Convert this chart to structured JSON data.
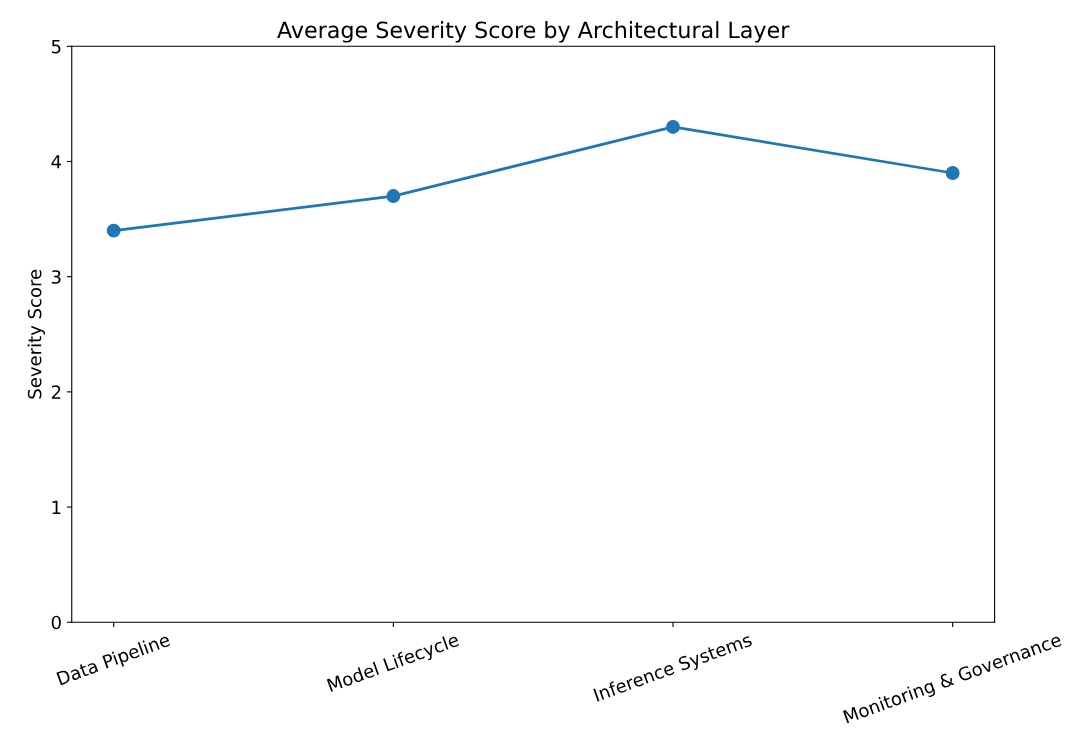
{
  "chart_data": {
    "type": "line",
    "title": "Average Severity Score by Architectural Layer",
    "ylabel": "Severity Score",
    "categories": [
      "Data Pipeline",
      "Model Lifecycle",
      "Inference Systems",
      "Monitoring & Governance"
    ],
    "series": [
      {
        "color": "#1f77b4",
        "values": [
          3.4,
          3.7,
          4.3,
          3.9
        ]
      }
    ],
    "ylim": [
      0,
      5
    ],
    "yticks": [
      0,
      1,
      2,
      3,
      4,
      5
    ],
    "marker": "circle",
    "line_style": "solid",
    "grid": false
  }
}
